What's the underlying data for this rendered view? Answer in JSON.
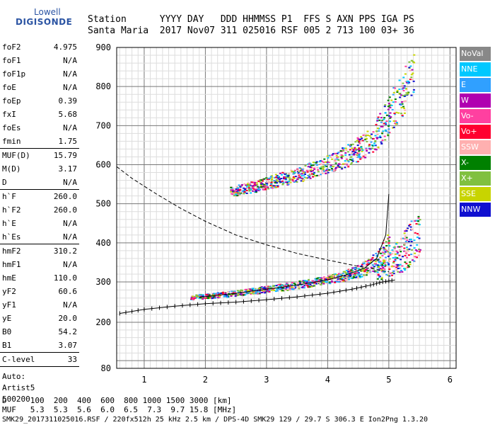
{
  "logo": {
    "line1": "Lowell",
    "line2": "DIGISONDE"
  },
  "header": {
    "row1": "Station      YYYY DAY   DDD HHMMSS P1  FFS S AXN PPS IGA PS",
    "row2": "Santa Maria  2017 Nov07 311 025016 RSF 005 2 713 100 03+ 36"
  },
  "params": [
    {
      "group": [
        {
          "label": "foF2",
          "value": "4.975"
        },
        {
          "label": "foF1",
          "value": "N/A"
        },
        {
          "label": "foF1p",
          "value": "N/A"
        },
        {
          "label": "foE",
          "value": "N/A"
        },
        {
          "label": "foEp",
          "value": "0.39"
        },
        {
          "label": "fxI",
          "value": "5.68"
        },
        {
          "label": "foEs",
          "value": "N/A"
        },
        {
          "label": "fmin",
          "value": "1.75"
        }
      ]
    },
    {
      "group": [
        {
          "label": "MUF(D)",
          "value": "15.79"
        },
        {
          "label": "M(D)",
          "value": "3.17"
        },
        {
          "label": "D",
          "value": "N/A"
        }
      ]
    },
    {
      "group": [
        {
          "label": "h`F",
          "value": "260.0"
        },
        {
          "label": "h`F2",
          "value": "260.0"
        },
        {
          "label": "h`E",
          "value": "N/A"
        },
        {
          "label": "h`Es",
          "value": "N/A"
        }
      ]
    },
    {
      "group": [
        {
          "label": "hmF2",
          "value": "310.2"
        },
        {
          "label": "hmF1",
          "value": "N/A"
        },
        {
          "label": "hmE",
          "value": "110.0"
        },
        {
          "label": "yF2",
          "value": "60.6"
        },
        {
          "label": "yF1",
          "value": "N/A"
        },
        {
          "label": "yE",
          "value": "20.0"
        },
        {
          "label": "B0",
          "value": "54.2"
        },
        {
          "label": "B1",
          "value": "3.07"
        }
      ]
    },
    {
      "group": [
        {
          "label": "C-level",
          "value": "33"
        }
      ]
    }
  ],
  "auto": {
    "line1": "Auto:",
    "line2": "Artist5",
    "line3": "500200"
  },
  "legend": [
    {
      "label": "NoVal",
      "color": "#888888"
    },
    {
      "label": "NNE",
      "color": "#00c8ff"
    },
    {
      "label": "E",
      "color": "#30a0ff"
    },
    {
      "label": "W",
      "color": "#b000b0"
    },
    {
      "label": "Vo-",
      "color": "#ff40a0"
    },
    {
      "label": "Vo+",
      "color": "#ff0030"
    },
    {
      "label": "SSW",
      "color": "#ffb0b0"
    },
    {
      "label": "X-",
      "color": "#008000"
    },
    {
      "label": "X+",
      "color": "#80c040"
    },
    {
      "label": "SSE",
      "color": "#c8d400"
    },
    {
      "label": "NNW",
      "color": "#1010d0"
    }
  ],
  "bottom": {
    "row1": "D     100  200  400  600  800 1000 1500 3000 [km]",
    "row2": "MUF   5.3  5.3  5.6  6.0  6.5  7.3  9.7 15.8 [MHz]"
  },
  "footer": "SMK29_2017311025016.RSF / 220fx512h 25 kHz 2.5 km / DPS-4D SMK29 129 / 29.7 S 306.3 E Ion2Png 1.3.20",
  "chart_data": {
    "type": "scatter",
    "x_ticks": [
      "1",
      "2",
      "3",
      "4",
      "5",
      "6"
    ],
    "y_ticks": [
      "200",
      "300",
      "400",
      "500",
      "600",
      "700",
      "800",
      "900"
    ],
    "y_bottom_label": "80",
    "xlim": [
      0.55,
      6.1
    ],
    "ylim": [
      80,
      900
    ],
    "grid": true,
    "legend_position": "right",
    "series": [
      {
        "kind": "echo-band",
        "description_bands": [
          {
            "x": [
              1.75,
              2.2,
              2.6,
              3.0,
              3.4,
              3.8,
              4.2,
              4.5,
              4.8,
              5.0
            ],
            "y_low": [
              258,
              262,
              268,
              275,
              282,
              292,
              302,
              312,
              330,
              345
            ],
            "y_high": [
              268,
              275,
              282,
              292,
              300,
              312,
              325,
              345,
              380,
              440
            ]
          },
          {
            "x": [
              4.8,
              5.0,
              5.2,
              5.35,
              5.5
            ],
            "y_low": [
              300,
              310,
              325,
              345,
              360
            ],
            "y_high": [
              340,
              380,
              420,
              460,
              480
            ]
          },
          {
            "x": [
              2.4,
              2.8,
              3.2,
              3.6,
              4.0,
              4.4,
              4.8,
              5.0,
              5.2,
              5.4
            ],
            "y_low": [
              520,
              530,
              545,
              560,
              580,
              600,
              640,
              680,
              720,
              780
            ],
            "y_high": [
              545,
              560,
              580,
              600,
              625,
              660,
              720,
              780,
              840,
              890
            ]
          }
        ]
      }
    ],
    "trace_lines": [
      {
        "name": "profile",
        "style": "solid-ticks",
        "x": [
          0.6,
          1.0,
          1.5,
          2.0,
          2.5,
          3.0,
          3.5,
          4.0,
          4.4,
          4.7,
          4.9,
          5.1
        ],
        "y": [
          222,
          232,
          240,
          246,
          250,
          256,
          263,
          272,
          282,
          292,
          300,
          305
        ]
      },
      {
        "name": "profile-upper",
        "style": "solid",
        "x": [
          1.9,
          2.5,
          3.0,
          3.5,
          4.0,
          4.3,
          4.6,
          4.8,
          4.95,
          5.0
        ],
        "y": [
          262,
          272,
          282,
          292,
          305,
          318,
          335,
          360,
          420,
          525
        ]
      },
      {
        "name": "muf-curve",
        "style": "dashed",
        "x": [
          0.55,
          0.8,
          1.2,
          1.6,
          2.0,
          2.5,
          3.0,
          3.5,
          4.0,
          4.5,
          5.0
        ],
        "y": [
          595,
          565,
          525,
          488,
          455,
          420,
          395,
          373,
          356,
          340,
          326
        ]
      }
    ]
  }
}
